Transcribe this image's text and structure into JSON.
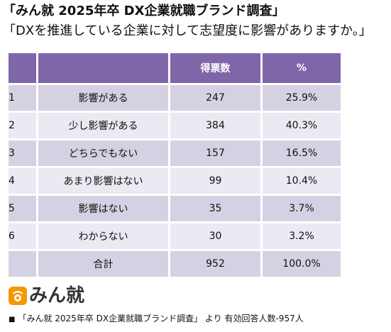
{
  "title": "「みん就 2025年卒 DX企業就職ブランド調査」",
  "subtitle": "「DXを推進している企業に対して志望度に影響がありますか。」",
  "colors": {
    "header_bg": "#7e66a8",
    "row_dark": "#d5d1e2",
    "row_light": "#ebe9f1",
    "logo_orange": "#f39800"
  },
  "table": {
    "headers": [
      "",
      "",
      "得票数",
      "%"
    ],
    "rows": [
      {
        "no": "1",
        "label": "影響がある",
        "count": "247",
        "pct": "25.9%"
      },
      {
        "no": "2",
        "label": "少し影響がある",
        "count": "384",
        "pct": "40.3%"
      },
      {
        "no": "3",
        "label": "どちらでもない",
        "count": "157",
        "pct": "16.5%"
      },
      {
        "no": "4",
        "label": "あまり影響はない",
        "count": "99",
        "pct": "10.4%"
      },
      {
        "no": "5",
        "label": "影響はない",
        "count": "35",
        "pct": "3.7%"
      },
      {
        "no": "6",
        "label": "わからない",
        "count": "30",
        "pct": "3.2%"
      },
      {
        "no": "",
        "label": "合計",
        "count": "952",
        "pct": "100.0%"
      }
    ]
  },
  "logo": {
    "text": "みん就",
    "icon": "minshu-logo-icon"
  },
  "footnote": {
    "bullet": "■",
    "text": "「みん就 2025年卒 DX企業就職ブランド調査」 より 有効回答人数-957人"
  }
}
